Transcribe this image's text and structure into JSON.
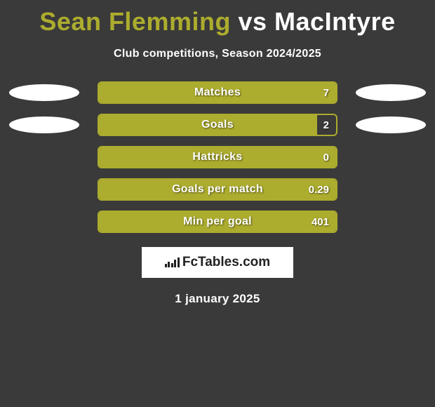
{
  "title": {
    "player1": "Sean Flemming",
    "vs": "vs",
    "player2": "MacIntyre"
  },
  "player1_color": "#acac2e",
  "player2_color": "#ffffff",
  "subtitle": "Club competitions, Season 2024/2025",
  "bar_fill_color": "#acac2e",
  "bar_border_color": "#acac2e",
  "background_color": "#3a3a3a",
  "ellipse_color": "#ffffff",
  "stats": [
    {
      "label": "Matches",
      "value": "7",
      "fill_pct": 100,
      "show_ellipses": true
    },
    {
      "label": "Goals",
      "value": "2",
      "fill_pct": 92,
      "show_ellipses": true
    },
    {
      "label": "Hattricks",
      "value": "0",
      "fill_pct": 100,
      "show_ellipses": false
    },
    {
      "label": "Goals per match",
      "value": "0.29",
      "fill_pct": 100,
      "show_ellipses": false
    },
    {
      "label": "Min per goal",
      "value": "401",
      "fill_pct": 100,
      "show_ellipses": false
    }
  ],
  "logo": {
    "text": "FcTables.com"
  },
  "date": "1 january 2025"
}
